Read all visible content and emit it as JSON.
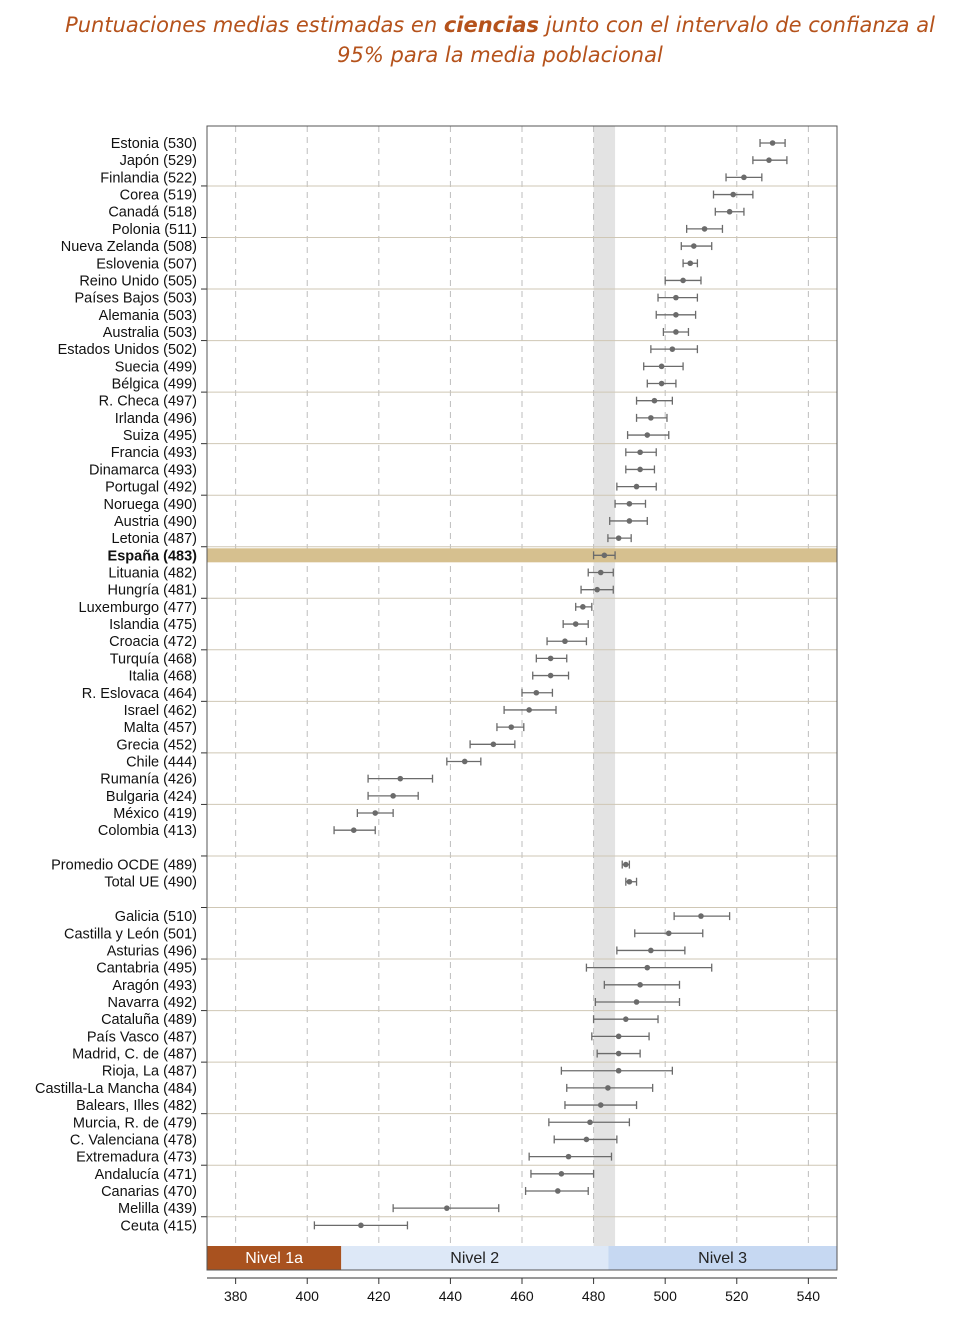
{
  "title": {
    "prefix": "Puntuaciones medias estimadas en ",
    "bold": "ciencias",
    "suffix": " junto con el intervalo de confianza al 95% para la media poblacional"
  },
  "chart_data": {
    "type": "scatter",
    "subtype": "dot-with-error-bars",
    "orientation": "horizontal",
    "title": "Puntuaciones medias estimadas en ciencias junto con el intervalo de confianza al 95% para la media poblacional",
    "xlim": [
      372,
      548
    ],
    "x_ticks": [
      380,
      400,
      420,
      440,
      460,
      480,
      500,
      520,
      540
    ],
    "grid": "vertical dashed",
    "highlight_band": [
      480,
      486
    ],
    "highlight_row": "España (483)",
    "levels": [
      {
        "label": "Nivel 1a",
        "from": 372,
        "to": 409.5,
        "color": "#a9521f",
        "text_color": "#ffffff"
      },
      {
        "label": "Nivel 2",
        "from": 409.5,
        "to": 484.1,
        "color": "#dde8f7",
        "text_color": "#222222"
      },
      {
        "label": "Nivel 3",
        "from": 484.1,
        "to": 548,
        "color": "#c6d8f2",
        "text_color": "#222222"
      }
    ],
    "rows": [
      {
        "label": "Estonia (530)",
        "mean": 530,
        "low": 526.5,
        "high": 533.5
      },
      {
        "label": "Japón (529)",
        "mean": 529,
        "low": 524.5,
        "high": 534
      },
      {
        "label": "Finlandia (522)",
        "mean": 522,
        "low": 517,
        "high": 527
      },
      {
        "label": "Corea (519)",
        "mean": 519,
        "low": 513.5,
        "high": 524.5
      },
      {
        "label": "Canadá (518)",
        "mean": 518,
        "low": 514,
        "high": 522
      },
      {
        "label": "Polonia (511)",
        "mean": 511,
        "low": 506,
        "high": 516
      },
      {
        "label": "Nueva Zelanda (508)",
        "mean": 508,
        "low": 504.5,
        "high": 513
      },
      {
        "label": "Eslovenia (507)",
        "mean": 507,
        "low": 505,
        "high": 509
      },
      {
        "label": "Reino Unido (505)",
        "mean": 505,
        "low": 500,
        "high": 510
      },
      {
        "label": "Países Bajos (503)",
        "mean": 503,
        "low": 498,
        "high": 509
      },
      {
        "label": "Alemania (503)",
        "mean": 503,
        "low": 497.5,
        "high": 508.5
      },
      {
        "label": "Australia (503)",
        "mean": 503,
        "low": 499.5,
        "high": 506.5
      },
      {
        "label": "Estados Unidos (502)",
        "mean": 502,
        "low": 496,
        "high": 509
      },
      {
        "label": "Suecia (499)",
        "mean": 499,
        "low": 494,
        "high": 505
      },
      {
        "label": "Bélgica (499)",
        "mean": 499,
        "low": 495,
        "high": 503
      },
      {
        "label": "R. Checa (497)",
        "mean": 497,
        "low": 492,
        "high": 502
      },
      {
        "label": "Irlanda (496)",
        "mean": 496,
        "low": 492,
        "high": 500.5
      },
      {
        "label": "Suiza (495)",
        "mean": 495,
        "low": 489.5,
        "high": 501
      },
      {
        "label": "Francia (493)",
        "mean": 493,
        "low": 489,
        "high": 497.5
      },
      {
        "label": "Dinamarca (493)",
        "mean": 493,
        "low": 489,
        "high": 497
      },
      {
        "label": "Portugal (492)",
        "mean": 492,
        "low": 486.5,
        "high": 497.5
      },
      {
        "label": "Noruega (490)",
        "mean": 490,
        "low": 486,
        "high": 494.5
      },
      {
        "label": "Austria (490)",
        "mean": 490,
        "low": 484.5,
        "high": 495
      },
      {
        "label": "Letonia (487)",
        "mean": 487,
        "low": 484,
        "high": 490.5
      },
      {
        "label": "España (483)",
        "mean": 483,
        "low": 480,
        "high": 486
      },
      {
        "label": "Lituania (482)",
        "mean": 482,
        "low": 478.5,
        "high": 485.5
      },
      {
        "label": "Hungría (481)",
        "mean": 481,
        "low": 476.5,
        "high": 485.5
      },
      {
        "label": "Luxemburgo (477)",
        "mean": 477,
        "low": 475,
        "high": 479.5
      },
      {
        "label": "Islandia (475)",
        "mean": 475,
        "low": 471.5,
        "high": 478.5
      },
      {
        "label": "Croacia (472)",
        "mean": 472,
        "low": 467,
        "high": 478
      },
      {
        "label": "Turquía (468)",
        "mean": 468,
        "low": 464,
        "high": 472.5
      },
      {
        "label": "Italia (468)",
        "mean": 468,
        "low": 463,
        "high": 473
      },
      {
        "label": "R. Eslovaca (464)",
        "mean": 464,
        "low": 460,
        "high": 468.5
      },
      {
        "label": "Israel (462)",
        "mean": 462,
        "low": 455,
        "high": 469.5
      },
      {
        "label": "Malta (457)",
        "mean": 457,
        "low": 453,
        "high": 460.5
      },
      {
        "label": "Grecia (452)",
        "mean": 452,
        "low": 445.5,
        "high": 458
      },
      {
        "label": "Chile (444)",
        "mean": 444,
        "low": 439,
        "high": 448.5
      },
      {
        "label": "Rumanía (426)",
        "mean": 426,
        "low": 417,
        "high": 435
      },
      {
        "label": "Bulgaria (424)",
        "mean": 424,
        "low": 417,
        "high": 431
      },
      {
        "label": "México (419)",
        "mean": 419,
        "low": 414,
        "high": 424
      },
      {
        "label": "Colombia (413)",
        "mean": 413,
        "low": 407.5,
        "high": 419
      },
      {
        "label": "",
        "mean": null,
        "low": null,
        "high": null
      },
      {
        "label": "Promedio OCDE (489)",
        "mean": 489,
        "low": 488,
        "high": 490
      },
      {
        "label": "Total UE (490)",
        "mean": 490,
        "low": 489,
        "high": 492
      },
      {
        "label": "",
        "mean": null,
        "low": null,
        "high": null
      },
      {
        "label": "Galicia (510)",
        "mean": 510,
        "low": 502.5,
        "high": 518
      },
      {
        "label": "Castilla y León (501)",
        "mean": 501,
        "low": 491.5,
        "high": 510.5
      },
      {
        "label": "Asturias (496)",
        "mean": 496,
        "low": 486.5,
        "high": 505.5
      },
      {
        "label": "Cantabria (495)",
        "mean": 495,
        "low": 478,
        "high": 513
      },
      {
        "label": "Aragón (493)",
        "mean": 493,
        "low": 483,
        "high": 504
      },
      {
        "label": "Navarra (492)",
        "mean": 492,
        "low": 480.5,
        "high": 504
      },
      {
        "label": "Cataluña (489)",
        "mean": 489,
        "low": 480,
        "high": 498
      },
      {
        "label": "País Vasco (487)",
        "mean": 487,
        "low": 479.5,
        "high": 495.5
      },
      {
        "label": "Madrid, C. de (487)",
        "mean": 487,
        "low": 481,
        "high": 493
      },
      {
        "label": "Rioja, La (487)",
        "mean": 487,
        "low": 471,
        "high": 502
      },
      {
        "label": "Castilla-La Mancha (484)",
        "mean": 484,
        "low": 472.5,
        "high": 496.5
      },
      {
        "label": "Balears, Illes (482)",
        "mean": 482,
        "low": 472,
        "high": 492
      },
      {
        "label": "Murcia, R. de (479)",
        "mean": 479,
        "low": 467.5,
        "high": 490
      },
      {
        "label": "C. Valenciana (478)",
        "mean": 478,
        "low": 469,
        "high": 486.5
      },
      {
        "label": "Extremadura (473)",
        "mean": 473,
        "low": 462,
        "high": 485
      },
      {
        "label": "Andalucía (471)",
        "mean": 471,
        "low": 462.5,
        "high": 480
      },
      {
        "label": "Canarias (470)",
        "mean": 470,
        "low": 461,
        "high": 478.5
      },
      {
        "label": "Melilla (439)",
        "mean": 439,
        "low": 424,
        "high": 453.5
      },
      {
        "label": "Ceuta (415)",
        "mean": 415,
        "low": 402,
        "high": 428
      }
    ],
    "colors": {
      "point": "#6b6b6b",
      "whisker": "#6b6b6b",
      "highlight_row": "#d6c08f",
      "band": "#e3e3e3",
      "separator": "#cfc7b5",
      "grid": "#bdbdbd",
      "title": "#b5521b"
    }
  }
}
